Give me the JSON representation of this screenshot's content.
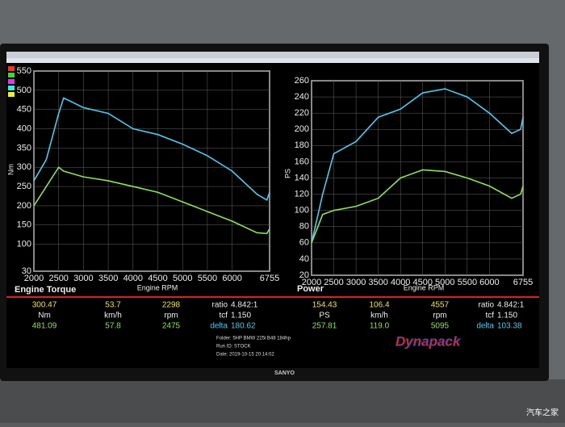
{
  "chart_data": [
    {
      "type": "line",
      "title": "Engine Torque",
      "x_label": "Engine RPM",
      "y_label": "Nm",
      "x": [
        2000,
        2250,
        2500,
        2600,
        3000,
        3500,
        4000,
        4500,
        5000,
        5500,
        6000,
        6500,
        6700,
        6755
      ],
      "series": [
        {
          "color": "#4fc8ee",
          "values": [
            265,
            320,
            440,
            480,
            455,
            440,
            400,
            385,
            360,
            330,
            290,
            230,
            215,
            235
          ]
        },
        {
          "color": "#8ee05a",
          "values": [
            200,
            250,
            300,
            290,
            275,
            265,
            250,
            235,
            210,
            185,
            160,
            130,
            128,
            140
          ]
        }
      ],
      "xlim": [
        2000,
        6755
      ],
      "xticks": [
        2000,
        2500,
        3000,
        3500,
        4000,
        4500,
        5000,
        5500,
        6000,
        6755
      ],
      "ylim": [
        30,
        550
      ],
      "yticks": [
        30,
        100,
        150,
        200,
        250,
        300,
        350,
        400,
        450,
        500,
        550
      ],
      "grid": true
    },
    {
      "type": "line",
      "title": "Power",
      "x_label": "Engine RPM",
      "y_label": "PS",
      "x": [
        2000,
        2250,
        2500,
        3000,
        3500,
        4000,
        4500,
        5000,
        5500,
        6000,
        6500,
        6700,
        6755
      ],
      "series": [
        {
          "color": "#4fc8ee",
          "values": [
            60,
            120,
            170,
            185,
            215,
            225,
            245,
            250,
            240,
            220,
            195,
            200,
            215
          ]
        },
        {
          "color": "#8ee05a",
          "values": [
            60,
            95,
            100,
            105,
            115,
            140,
            150,
            148,
            140,
            130,
            115,
            120,
            130
          ]
        }
      ],
      "xlim": [
        2000,
        6755
      ],
      "xticks": [
        2000,
        2500,
        3000,
        3500,
        4000,
        4500,
        5000,
        5500,
        6000,
        6755
      ],
      "ylim": [
        20,
        260
      ],
      "yticks": [
        20,
        40,
        60,
        80,
        100,
        120,
        140,
        160,
        180,
        200,
        220,
        240,
        260
      ],
      "grid": true
    }
  ],
  "readout": [
    {
      "top": "300.47",
      "unit": "Nm",
      "bottom": "481.09"
    },
    {
      "top": "53.7",
      "unit": "km/h",
      "bottom": "57.8"
    },
    {
      "top": "2298",
      "unit": "rpm",
      "bottom": "2475"
    },
    {
      "top": "154.43",
      "unit": "PS",
      "bottom": "257.81"
    },
    {
      "top": "106.4",
      "unit": "km/h",
      "bottom": "119.0"
    },
    {
      "top": "4557",
      "unit": "rpm",
      "bottom": "5095"
    }
  ],
  "settings": [
    [
      {
        "label": "ratio",
        "value": "4.842:1"
      },
      {
        "label": "tcf",
        "value": "1.150"
      },
      {
        "label": "delta",
        "value": "180.62"
      }
    ],
    [
      {
        "label": "ratio",
        "value": "4.842:1"
      },
      {
        "label": "tcf",
        "value": "1.150"
      },
      {
        "label": "delta",
        "value": "103.38"
      }
    ]
  ],
  "info": [
    "Folder:  5HP BMW 225i B48 184hp",
    "Run ID:  STOCK",
    "Date:  2019-10-15 20:14:02"
  ],
  "logo": "Dynapack",
  "monitor_brand": "SANYO",
  "watermark": "汽车之家"
}
